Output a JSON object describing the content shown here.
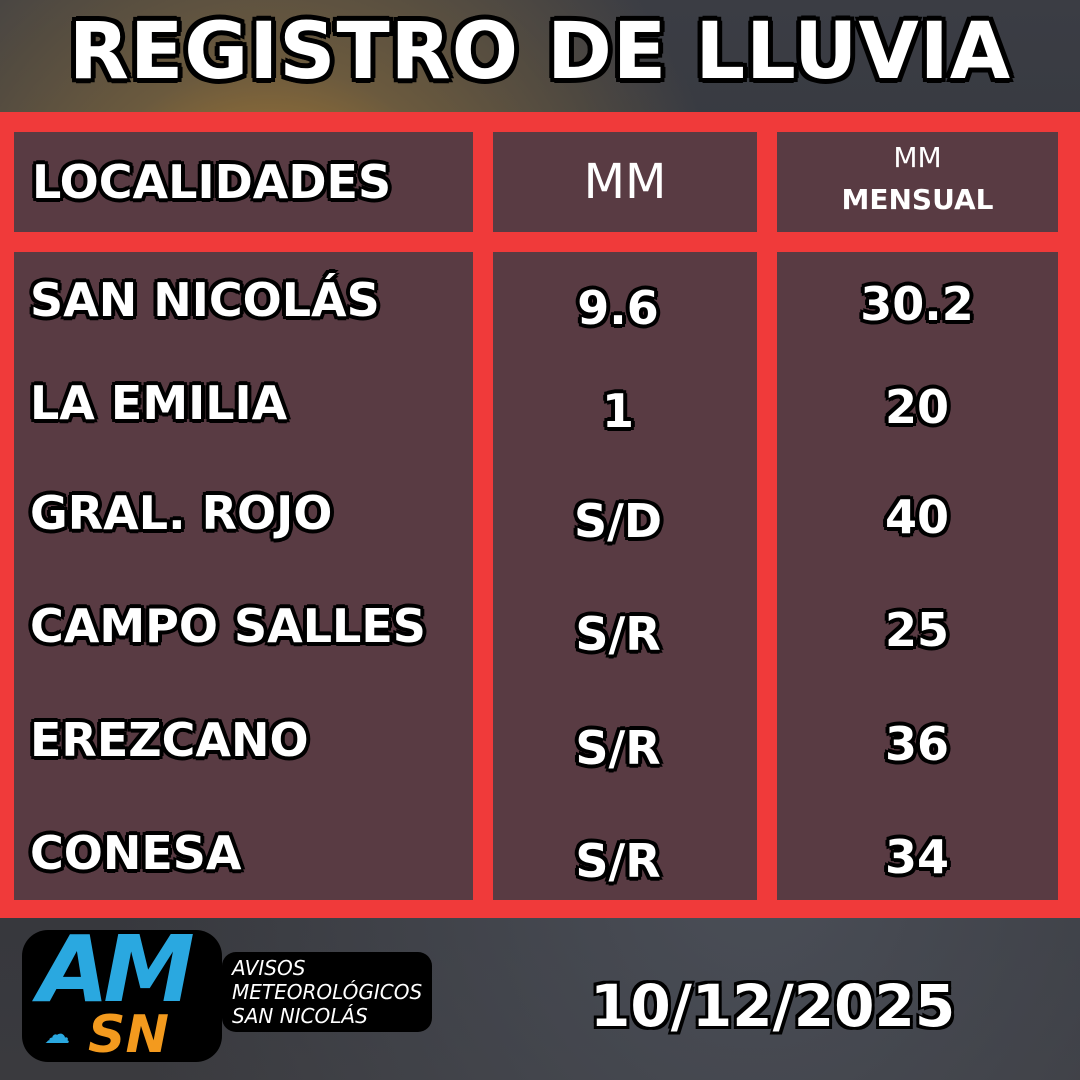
{
  "title": "REGISTRO DE LLUVIA",
  "headers": {
    "locality": "LOCALIDADES",
    "mm": "MM",
    "monthly_line1": "MM",
    "monthly_line2": "MENSUAL"
  },
  "rows": [
    {
      "locality": "SAN NICOLÁS",
      "mm": "9.6",
      "monthly": "30.2"
    },
    {
      "locality": "LA EMILIA",
      "mm": "1",
      "monthly": "20"
    },
    {
      "locality": "GRAL. ROJO",
      "mm": "S/D",
      "monthly": "40"
    },
    {
      "locality": "CAMPO SALLES",
      "mm": "S/R",
      "monthly": "25"
    },
    {
      "locality": "EREZCANO",
      "mm": "S/R",
      "monthly": "36"
    },
    {
      "locality": "CONESA",
      "mm": "S/R",
      "monthly": "34"
    }
  ],
  "logo": {
    "mark": "AM",
    "sub": "SN",
    "line1": "AVISOS",
    "line2": "METEOROLÓGICOS",
    "line3": "SAN NICOLÁS"
  },
  "date": "10/12/2025",
  "colors": {
    "frame": "#f03a3a",
    "logo_blue": "#2aa8e0",
    "logo_orange": "#f39a1e"
  }
}
